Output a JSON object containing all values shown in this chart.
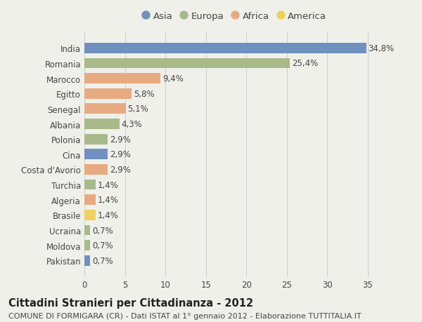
{
  "countries": [
    "India",
    "Romania",
    "Marocco",
    "Egitto",
    "Senegal",
    "Albania",
    "Polonia",
    "Cina",
    "Costa d'Avorio",
    "Turchia",
    "Algeria",
    "Brasile",
    "Ucraina",
    "Moldova",
    "Pakistan"
  ],
  "values": [
    34.8,
    25.4,
    9.4,
    5.8,
    5.1,
    4.3,
    2.9,
    2.9,
    2.9,
    1.4,
    1.4,
    1.4,
    0.7,
    0.7,
    0.7
  ],
  "labels": [
    "34,8%",
    "25,4%",
    "9,4%",
    "5,8%",
    "5,1%",
    "4,3%",
    "2,9%",
    "2,9%",
    "2,9%",
    "1,4%",
    "1,4%",
    "1,4%",
    "0,7%",
    "0,7%",
    "0,7%"
  ],
  "continents": [
    "Asia",
    "Europa",
    "Africa",
    "Africa",
    "Africa",
    "Europa",
    "Europa",
    "Asia",
    "Africa",
    "Europa",
    "Africa",
    "America",
    "Europa",
    "Europa",
    "Asia"
  ],
  "colors": {
    "Asia": "#7090bf",
    "Europa": "#a8ba8a",
    "Africa": "#e8aa80",
    "America": "#f0d060"
  },
  "legend_order": [
    "Asia",
    "Europa",
    "Africa",
    "America"
  ],
  "title": "Cittadini Stranieri per Cittadinanza - 2012",
  "subtitle": "COMUNE DI FORMIGARA (CR) - Dati ISTAT al 1° gennaio 2012 - Elaborazione TUTTITALIA.IT",
  "xlim": [
    0,
    37
  ],
  "xticks": [
    0,
    5,
    10,
    15,
    20,
    25,
    30,
    35
  ],
  "background_color": "#f0f0eb",
  "plot_bg_color": "#f0f0eb",
  "grid_color": "#d0d0d0",
  "text_color": "#444444",
  "title_fontsize": 10.5,
  "subtitle_fontsize": 8.0,
  "label_fontsize": 8.5,
  "tick_fontsize": 8.5,
  "legend_fontsize": 9.5
}
